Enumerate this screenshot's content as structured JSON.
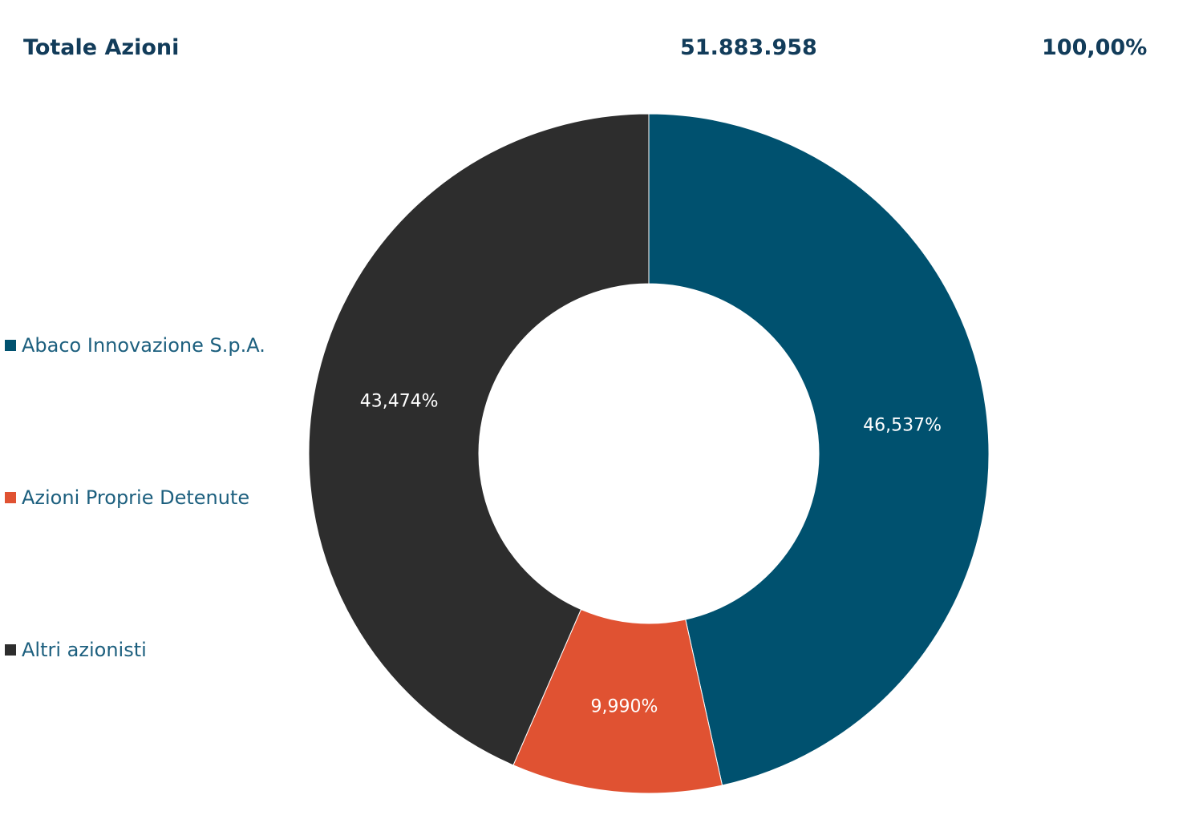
{
  "totals": {
    "label": "Totale Azioni",
    "count": "51.883.958",
    "percent": "100,00%"
  },
  "chart_data": {
    "type": "pie",
    "donut": true,
    "legend_position": "left",
    "slices": [
      {
        "name": "Abaco Innovazione S.p.A.",
        "value": 46.537,
        "label": "46,537%",
        "color": "#00516f"
      },
      {
        "name": "Azioni Proprie Detenute",
        "value": 9.99,
        "label": "9,990%",
        "color": "#e05232"
      },
      {
        "name": "Altri azionisti",
        "value": 43.474,
        "label": "43,474%",
        "color": "#2d2d2d"
      }
    ]
  }
}
